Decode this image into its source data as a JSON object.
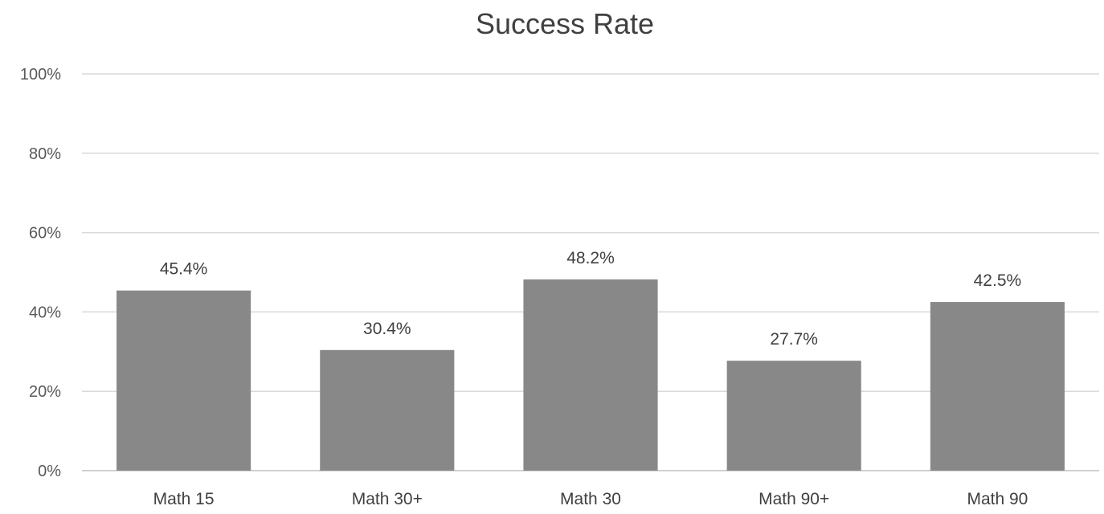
{
  "chart_data": {
    "type": "bar",
    "title": "Success Rate",
    "categories": [
      "Math 15",
      "Math 30+",
      "Math 30",
      "Math 90+",
      "Math 90"
    ],
    "values": [
      45.4,
      30.4,
      48.2,
      27.7,
      42.5
    ],
    "data_labels": [
      "45.4%",
      "30.4%",
      "48.2%",
      "27.7%",
      "42.5%"
    ],
    "ylim": [
      0,
      100
    ],
    "y_ticks": [
      0,
      20,
      40,
      60,
      80,
      100
    ],
    "y_tick_labels": [
      "0%",
      "20%",
      "40%",
      "60%",
      "80%",
      "100%"
    ],
    "xlabel": "",
    "ylabel": "",
    "grid": true,
    "legend": "none",
    "bar_color": "#888888"
  }
}
